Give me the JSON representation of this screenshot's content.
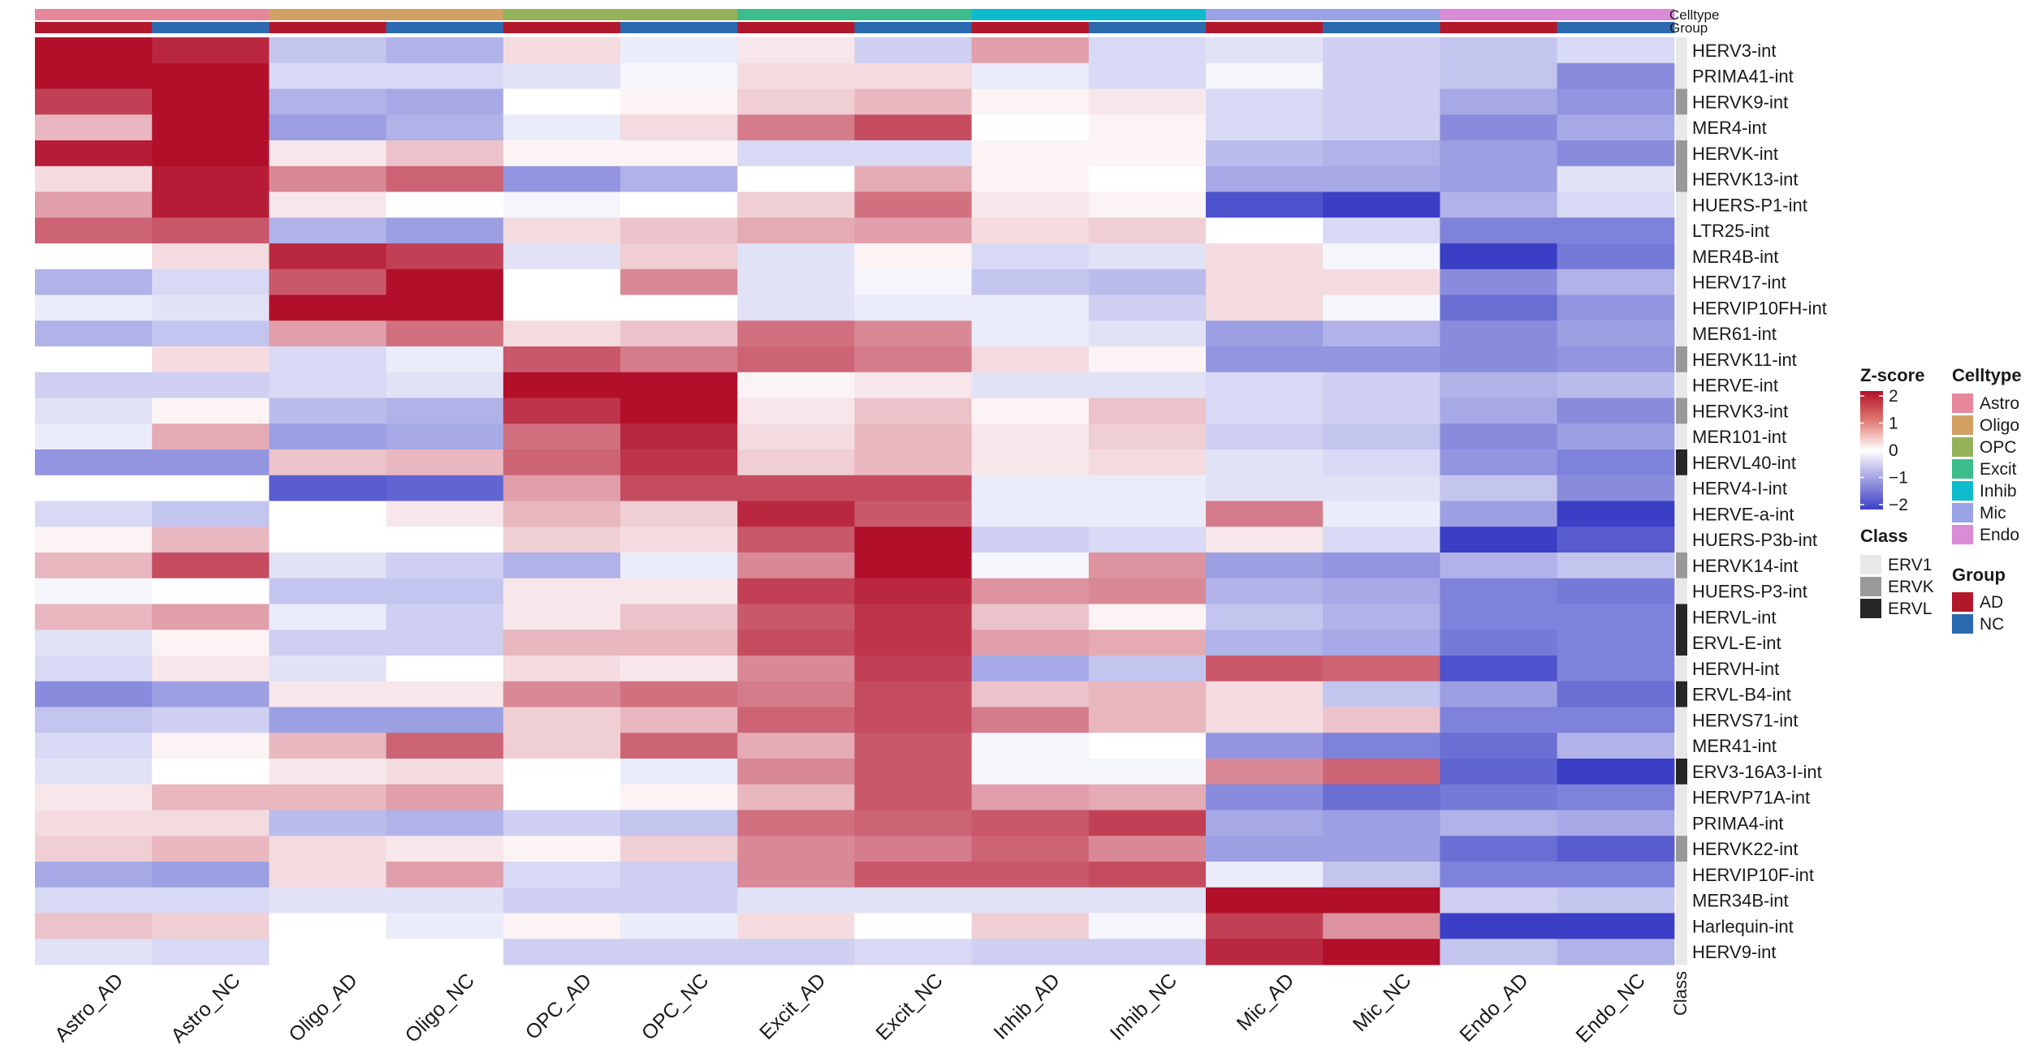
{
  "chart_data": {
    "type": "heatmap",
    "columns": [
      "Astro_AD",
      "Astro_NC",
      "Oligo_AD",
      "Oligo_NC",
      "OPC_AD",
      "OPC_NC",
      "Excit_AD",
      "Excit_NC",
      "Inhib_AD",
      "Inhib_NC",
      "Mic_AD",
      "Mic_NC",
      "Endo_AD",
      "Endo_NC"
    ],
    "column_celltype": [
      "Astro",
      "Astro",
      "Oligo",
      "Oligo",
      "OPC",
      "OPC",
      "Excit",
      "Excit",
      "Inhib",
      "Inhib",
      "Mic",
      "Mic",
      "Endo",
      "Endo"
    ],
    "column_group": [
      "AD",
      "NC",
      "AD",
      "NC",
      "AD",
      "NC",
      "AD",
      "NC",
      "AD",
      "NC",
      "AD",
      "NC",
      "AD",
      "NC"
    ],
    "rows": [
      "HERV3-int",
      "PRIMA41-int",
      "HERVK9-int",
      "MER4-int",
      "HERVK-int",
      "HERVK13-int",
      "HUERS-P1-int",
      "LTR25-int",
      "MER4B-int",
      "HERV17-int",
      "HERVIP10FH-int",
      "MER61-int",
      "HERVK11-int",
      "HERVE-int",
      "HERVK3-int",
      "MER101-int",
      "HERVL40-int",
      "HERV4-I-int",
      "HERVE-a-int",
      "HUERS-P3b-int",
      "HERVK14-int",
      "HUERS-P3-int",
      "HERVL-int",
      "ERVL-E-int",
      "HERVH-int",
      "ERVL-B4-int",
      "HERVS71-int",
      "MER41-int",
      "ERV3-16A3-I-int",
      "HERVP71A-int",
      "PRIMA4-int",
      "HERVK22-int",
      "HERVIP10F-int",
      "MER34B-int",
      "Harlequin-int",
      "HERV9-int"
    ],
    "row_class": [
      "ERV1",
      "ERV1",
      "ERVK",
      "ERV1",
      "ERVK",
      "ERVK",
      "ERV1",
      "ERV1",
      "ERV1",
      "ERV1",
      "ERV1",
      "ERV1",
      "ERVK",
      "ERV1",
      "ERVK",
      "ERV1",
      "ERVL",
      "ERV1",
      "ERV1",
      "ERV1",
      "ERVK",
      "ERV1",
      "ERVL",
      "ERVL",
      "ERV1",
      "ERVL",
      "ERV1",
      "ERV1",
      "ERVL",
      "ERV1",
      "ERV1",
      "ERVK",
      "ERV1",
      "ERV1",
      "ERV1",
      "ERV1"
    ],
    "values": [
      [
        2.0,
        1.8,
        -0.6,
        -0.8,
        0.3,
        -0.2,
        0.2,
        -0.5,
        0.8,
        -0.4,
        -0.3,
        -0.5,
        -0.6,
        -0.4
      ],
      [
        2.0,
        2.0,
        -0.4,
        -0.4,
        -0.3,
        -0.1,
        0.3,
        0.3,
        -0.2,
        -0.4,
        -0.1,
        -0.5,
        -0.6,
        -1.2
      ],
      [
        1.6,
        2.0,
        -0.8,
        -0.9,
        0.0,
        0.1,
        0.4,
        0.6,
        0.1,
        0.2,
        -0.4,
        -0.5,
        -0.9,
        -1.1
      ],
      [
        0.6,
        2.0,
        -1.0,
        -0.8,
        -0.2,
        0.3,
        1.1,
        1.5,
        0.0,
        0.1,
        -0.4,
        -0.5,
        -1.2,
        -0.9
      ],
      [
        1.9,
        2.0,
        0.2,
        0.5,
        0.1,
        0.1,
        -0.4,
        -0.4,
        0.1,
        0.1,
        -0.7,
        -0.8,
        -1.0,
        -1.2
      ],
      [
        0.3,
        1.9,
        1.0,
        1.3,
        -1.1,
        -0.8,
        0.0,
        0.7,
        0.1,
        0.0,
        -0.9,
        -0.9,
        -1.0,
        -0.3
      ],
      [
        0.8,
        1.9,
        0.2,
        0.0,
        -0.1,
        0.0,
        0.4,
        1.2,
        0.2,
        0.1,
        -1.8,
        -2.0,
        -0.8,
        -0.4
      ],
      [
        1.3,
        1.4,
        -0.8,
        -1.0,
        0.3,
        0.5,
        0.7,
        0.8,
        0.3,
        0.4,
        0.0,
        -0.4,
        -1.3,
        -1.3
      ],
      [
        0.0,
        0.3,
        1.8,
        1.6,
        -0.3,
        0.4,
        -0.3,
        0.1,
        -0.4,
        -0.3,
        0.3,
        -0.1,
        -2.0,
        -1.4
      ],
      [
        -0.8,
        -0.4,
        1.4,
        2.0,
        0.0,
        1.0,
        -0.3,
        -0.1,
        -0.6,
        -0.7,
        0.3,
        0.3,
        -1.2,
        -0.8
      ],
      [
        -0.2,
        -0.3,
        2.0,
        2.0,
        0.0,
        0.0,
        -0.3,
        -0.2,
        -0.2,
        -0.5,
        0.3,
        -0.1,
        -1.5,
        -1.1
      ],
      [
        -0.8,
        -0.6,
        0.8,
        1.2,
        0.3,
        0.5,
        1.2,
        1.0,
        -0.2,
        -0.3,
        -1.0,
        -0.8,
        -1.2,
        -1.0
      ],
      [
        0.0,
        0.3,
        -0.4,
        -0.2,
        1.4,
        1.1,
        1.3,
        1.1,
        0.3,
        0.1,
        -1.1,
        -1.1,
        -1.2,
        -1.1
      ],
      [
        -0.5,
        -0.5,
        -0.4,
        -0.3,
        2.0,
        2.0,
        0.1,
        0.2,
        -0.3,
        -0.3,
        -0.4,
        -0.5,
        -0.8,
        -0.7
      ],
      [
        -0.3,
        0.1,
        -0.7,
        -0.8,
        1.7,
        2.0,
        0.2,
        0.5,
        0.1,
        0.5,
        -0.4,
        -0.5,
        -0.9,
        -1.2
      ],
      [
        -0.2,
        0.7,
        -1.0,
        -0.9,
        1.2,
        1.8,
        0.3,
        0.6,
        0.2,
        0.4,
        -0.5,
        -0.6,
        -1.2,
        -1.0
      ],
      [
        -1.1,
        -1.1,
        0.5,
        0.6,
        1.3,
        1.7,
        0.4,
        0.6,
        0.2,
        0.3,
        -0.3,
        -0.4,
        -1.1,
        -1.3
      ],
      [
        0.0,
        0.0,
        -1.7,
        -1.6,
        0.8,
        1.5,
        1.5,
        1.5,
        -0.2,
        -0.2,
        -0.3,
        -0.3,
        -0.6,
        -1.2
      ],
      [
        -0.4,
        -0.6,
        0.0,
        0.2,
        0.6,
        0.4,
        1.8,
        1.4,
        -0.2,
        -0.2,
        1.1,
        -0.2,
        -1.0,
        -2.0
      ],
      [
        0.1,
        0.6,
        0.0,
        0.0,
        0.4,
        0.3,
        1.4,
        2.0,
        -0.5,
        -0.4,
        0.2,
        -0.4,
        -2.0,
        -1.7
      ],
      [
        0.6,
        1.5,
        -0.3,
        -0.5,
        -0.8,
        -0.2,
        1.0,
        2.0,
        -0.1,
        0.9,
        -1.0,
        -1.1,
        -0.8,
        -0.6
      ],
      [
        -0.1,
        0.0,
        -0.6,
        -0.6,
        0.2,
        0.2,
        1.6,
        1.8,
        0.9,
        1.0,
        -0.8,
        -0.9,
        -1.3,
        -1.4
      ],
      [
        0.6,
        0.8,
        -0.2,
        -0.5,
        0.2,
        0.5,
        1.4,
        1.7,
        0.5,
        0.1,
        -0.6,
        -0.8,
        -1.3,
        -1.3
      ],
      [
        -0.3,
        0.1,
        -0.5,
        -0.5,
        0.6,
        0.6,
        1.5,
        1.7,
        0.8,
        0.7,
        -0.8,
        -0.9,
        -1.4,
        -1.3
      ],
      [
        -0.4,
        0.2,
        -0.3,
        0.0,
        0.3,
        0.2,
        1.0,
        1.6,
        -0.9,
        -0.6,
        1.4,
        1.3,
        -1.8,
        -1.3
      ],
      [
        -1.2,
        -1.0,
        0.2,
        0.2,
        1.0,
        1.2,
        1.1,
        1.5,
        0.5,
        0.6,
        0.3,
        -0.6,
        -1.0,
        -1.5
      ],
      [
        -0.6,
        -0.5,
        -1.0,
        -1.0,
        0.4,
        0.6,
        1.3,
        1.5,
        1.1,
        0.6,
        0.3,
        0.5,
        -1.3,
        -1.3
      ],
      [
        -0.4,
        0.1,
        0.6,
        1.3,
        0.4,
        1.3,
        0.7,
        1.4,
        -0.1,
        0.0,
        -1.1,
        -1.3,
        -1.5,
        -0.8
      ],
      [
        -0.3,
        0.0,
        0.2,
        0.3,
        0.0,
        -0.2,
        1.0,
        1.4,
        -0.1,
        -0.1,
        1.0,
        1.3,
        -1.6,
        -2.0
      ],
      [
        0.2,
        0.6,
        0.6,
        0.8,
        0.0,
        0.1,
        0.6,
        1.4,
        0.8,
        0.7,
        -1.2,
        -1.5,
        -1.4,
        -1.3
      ],
      [
        0.3,
        0.3,
        -0.7,
        -0.8,
        -0.5,
        -0.6,
        1.2,
        1.3,
        1.4,
        1.6,
        -0.9,
        -1.0,
        -0.8,
        -0.9
      ],
      [
        0.4,
        0.6,
        0.3,
        0.2,
        0.1,
        0.4,
        1.0,
        1.1,
        1.3,
        1.0,
        -1.0,
        -1.0,
        -1.5,
        -1.7
      ],
      [
        -0.9,
        -1.0,
        0.3,
        0.8,
        -0.4,
        -0.5,
        1.0,
        1.4,
        1.4,
        1.5,
        -0.2,
        -0.6,
        -1.3,
        -1.3
      ],
      [
        -0.4,
        -0.4,
        -0.3,
        -0.3,
        -0.5,
        -0.5,
        -0.3,
        -0.3,
        -0.3,
        -0.3,
        2.0,
        2.0,
        -0.5,
        -0.6
      ],
      [
        0.5,
        0.4,
        0.0,
        -0.2,
        0.1,
        -0.2,
        0.3,
        0.0,
        0.4,
        -0.1,
        1.6,
        0.9,
        -2.0,
        -2.0
      ],
      [
        -0.3,
        -0.4,
        0.0,
        0.0,
        -0.5,
        -0.5,
        -0.5,
        -0.4,
        -0.5,
        -0.5,
        1.8,
        2.0,
        -0.6,
        -0.8
      ]
    ],
    "color_scale": {
      "min": -2,
      "max": 2,
      "low": "#3a3fc6",
      "mid": "#ffffff",
      "high": "#b2102a"
    },
    "legend": {
      "zscore_title": "Z-score",
      "zscore_ticks": [
        {
          "value": 2,
          "label": "2"
        },
        {
          "value": 1,
          "label": "1"
        },
        {
          "value": 0,
          "label": "0"
        },
        {
          "value": -1,
          "label": "−1"
        },
        {
          "value": -2,
          "label": "−2"
        }
      ],
      "class_title": "Class",
      "class_items": [
        {
          "name": "ERV1",
          "color": "#e8e8e8"
        },
        {
          "name": "ERVK",
          "color": "#999999"
        },
        {
          "name": "ERVL",
          "color": "#262626"
        }
      ],
      "celltype_title": "Celltype",
      "celltype_items": [
        {
          "name": "Astro",
          "color": "#e6879c"
        },
        {
          "name": "Oligo",
          "color": "#d2a063"
        },
        {
          "name": "OPC",
          "color": "#94b25a"
        },
        {
          "name": "Excit",
          "color": "#3cbd8c"
        },
        {
          "name": "Inhib",
          "color": "#0ebbcc"
        },
        {
          "name": "Mic",
          "color": "#99a3e6"
        },
        {
          "name": "Endo",
          "color": "#da8cd6"
        }
      ],
      "group_title": "Group",
      "group_items": [
        {
          "name": "AD",
          "color": "#b2182b"
        },
        {
          "name": "NC",
          "color": "#2c6ab0"
        }
      ]
    },
    "annotation_labels": {
      "celltype": "Celltype",
      "group": "Group",
      "class": "Class"
    }
  }
}
